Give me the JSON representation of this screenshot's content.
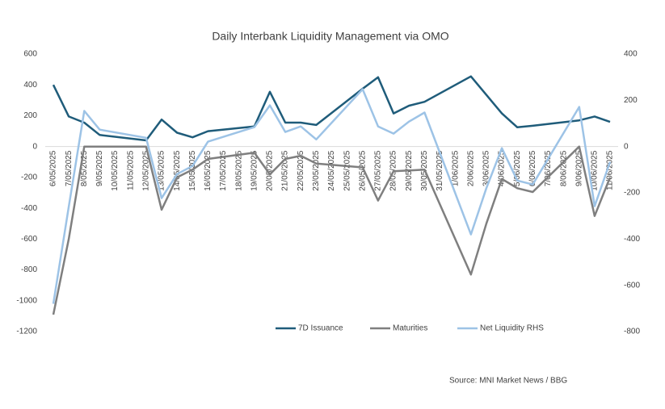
{
  "chart_data": {
    "type": "line",
    "title": "Daily Interbank Liquidity Management via OMO",
    "source": "Source:  MNI Market News / BBG",
    "categories": [
      "6/05/2025",
      "7/05/2025",
      "8/05/2025",
      "9/05/2025",
      "10/05/2025",
      "11/05/2025",
      "12/05/2025",
      "13/05/2025",
      "14/05/2025",
      "15/05/2025",
      "16/05/2025",
      "17/05/2025",
      "18/05/2025",
      "19/05/2025",
      "20/05/2025",
      "21/05/2025",
      "22/05/2025",
      "23/05/2025",
      "24/05/2025",
      "25/05/2025",
      "26/05/2025",
      "27/05/2025",
      "28/05/2025",
      "29/05/2025",
      "30/05/2025",
      "31/05/2025",
      "1/06/2025",
      "2/06/2025",
      "3/06/2025",
      "4/06/2025",
      "5/06/2025",
      "6/06/2025",
      "7/06/2025",
      "8/06/2025",
      "9/06/2025",
      "10/06/2025",
      "11/06/2025"
    ],
    "ylim": [
      -1200,
      600
    ],
    "yticks": [
      600,
      400,
      200,
      0,
      -200,
      -400,
      -600,
      -800,
      -1000,
      -1200
    ],
    "y2lim": [
      -800,
      400
    ],
    "y2ticks": [
      400,
      200,
      0,
      -200,
      -400,
      -600,
      -800
    ],
    "legend": "bottom",
    "series": [
      {
        "name": "7D Issuance",
        "color": "#1f5c7a",
        "axis": "y",
        "x": [
          "6/05/2025",
          "7/05/2025",
          "8/05/2025",
          "9/05/2025",
          "12/05/2025",
          "13/05/2025",
          "14/05/2025",
          "15/05/2025",
          "16/05/2025",
          "19/05/2025",
          "20/05/2025",
          "21/05/2025",
          "22/05/2025",
          "23/05/2025",
          "26/05/2025",
          "27/05/2025",
          "28/05/2025",
          "29/05/2025",
          "30/05/2025",
          "2/06/2025",
          "3/06/2025",
          "4/06/2025",
          "5/06/2025",
          "6/06/2025",
          "9/06/2025",
          "10/06/2025",
          "11/06/2025"
        ],
        "values": [
          400,
          195,
          155,
          75,
          40,
          175,
          90,
          60,
          100,
          130,
          355,
          155,
          155,
          140,
          375,
          450,
          215,
          265,
          290,
          455,
          335,
          215,
          125,
          135,
          170,
          195,
          160
        ]
      },
      {
        "name": "Maturities",
        "color": "#7f7f7f",
        "axis": "y",
        "x": [
          "6/05/2025",
          "7/05/2025",
          "8/05/2025",
          "9/05/2025",
          "12/05/2025",
          "13/05/2025",
          "14/05/2025",
          "15/05/2025",
          "16/05/2025",
          "19/05/2025",
          "20/05/2025",
          "21/05/2025",
          "22/05/2025",
          "23/05/2025",
          "26/05/2025",
          "27/05/2025",
          "28/05/2025",
          "29/05/2025",
          "30/05/2025",
          "2/06/2025",
          "3/06/2025",
          "4/06/2025",
          "5/06/2025",
          "6/06/2025",
          "9/06/2025",
          "10/06/2025",
          "11/06/2025"
        ],
        "values": [
          -1090,
          -600,
          0,
          0,
          0,
          -410,
          -200,
          -150,
          -80,
          -40,
          -180,
          -80,
          -60,
          -110,
          -135,
          -350,
          -160,
          -155,
          -150,
          -830,
          -500,
          -210,
          -270,
          -295,
          0,
          -450,
          -200
        ]
      },
      {
        "name": "Net Liquidity RHS",
        "color": "#9dc3e6",
        "axis": "y2",
        "x": [
          "6/05/2025",
          "7/05/2025",
          "8/05/2025",
          "9/05/2025",
          "12/05/2025",
          "13/05/2025",
          "14/05/2025",
          "15/05/2025",
          "16/05/2025",
          "19/05/2025",
          "20/05/2025",
          "21/05/2025",
          "22/05/2025",
          "23/05/2025",
          "26/05/2025",
          "27/05/2025",
          "28/05/2025",
          "29/05/2025",
          "30/05/2025",
          "2/06/2025",
          "3/06/2025",
          "4/06/2025",
          "5/06/2025",
          "6/06/2025",
          "9/06/2025",
          "10/06/2025",
          "11/06/2025"
        ],
        "values": [
          -680,
          -260,
          154,
          73,
          38,
          -223,
          -119,
          -84,
          21,
          84,
          178,
          63,
          87,
          31,
          248,
          87,
          56,
          108,
          147,
          -380,
          -180,
          -7,
          -147,
          -164,
          171,
          -258,
          -66
        ]
      }
    ]
  }
}
